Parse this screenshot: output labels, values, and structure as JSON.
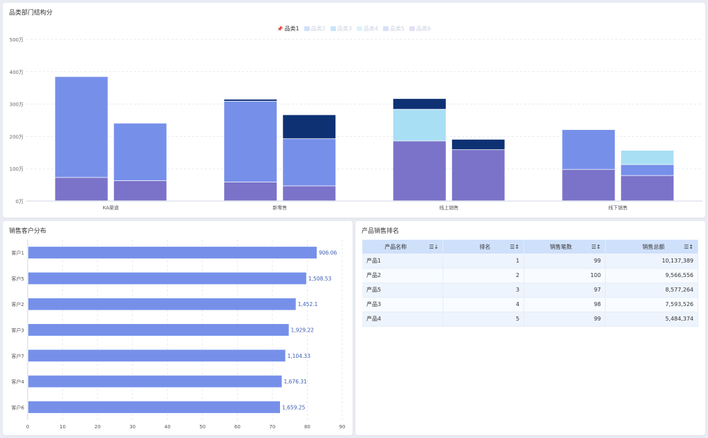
{
  "top_panel": {
    "title": "品类部门结构分"
  },
  "left_panel": {
    "title": "销售客户分布"
  },
  "right_panel": {
    "title": "产品销售排名"
  },
  "chart_data": [
    {
      "type": "bar",
      "stacked": true,
      "title": "品类部门结构分",
      "categories": [
        "KA渠道",
        "新零售",
        "线上销售",
        "线下销售"
      ],
      "y_unit": "万",
      "ylim": [
        0,
        500
      ],
      "yticks": [
        "0万",
        "100万",
        "200万",
        "300万",
        "400万",
        "500万"
      ],
      "legend": [
        {
          "name": "品类1",
          "active": true,
          "color": "#0e3174"
        },
        {
          "name": "品类2",
          "active": false,
          "color": "#cfe0fb"
        },
        {
          "name": "品类3",
          "active": false,
          "color": "#c7e6fa"
        },
        {
          "name": "品类4",
          "active": false,
          "color": "#dff2fb"
        },
        {
          "name": "品类5",
          "active": false,
          "color": "#d9e1f6"
        },
        {
          "name": "品类6",
          "active": false,
          "color": "#e3e0f4"
        }
      ],
      "bars": [
        [
          {
            "segments": [
              {
                "value": 72,
                "color": "#7b73c9"
              },
              {
                "value": 312,
                "color": "#7690ea"
              }
            ]
          },
          {
            "segments": [
              {
                "value": 62,
                "color": "#7b73c9"
              },
              {
                "value": 178,
                "color": "#7690ea"
              }
            ]
          }
        ],
        [
          {
            "segments": [
              {
                "value": 58,
                "color": "#7b73c9"
              },
              {
                "value": 250,
                "color": "#7690ea"
              },
              {
                "value": 6,
                "color": "#0e3174"
              }
            ]
          },
          {
            "segments": [
              {
                "value": 46,
                "color": "#7b73c9"
              },
              {
                "value": 146,
                "color": "#7690ea"
              },
              {
                "value": 74,
                "color": "#0e3174"
              }
            ]
          }
        ],
        [
          {
            "segments": [
              {
                "value": 185,
                "color": "#7b73c9"
              },
              {
                "value": 98,
                "color": "#a9dff4"
              },
              {
                "value": 33,
                "color": "#0e3174"
              }
            ]
          },
          {
            "segments": [
              {
                "value": 158,
                "color": "#7b73c9"
              },
              {
                "value": 32,
                "color": "#0e3174"
              }
            ]
          }
        ],
        [
          {
            "segments": [
              {
                "value": 97,
                "color": "#7b73c9"
              },
              {
                "value": 123,
                "color": "#7690ea"
              }
            ]
          },
          {
            "segments": [
              {
                "value": 78,
                "color": "#7b73c9"
              },
              {
                "value": 34,
                "color": "#7690ea"
              },
              {
                "value": 44,
                "color": "#a9dff4"
              }
            ]
          }
        ]
      ]
    },
    {
      "type": "bar",
      "orientation": "horizontal",
      "title": "销售客户分布",
      "categories": [
        "客户1",
        "客户5",
        "客户2",
        "客户3",
        "客户7",
        "客户4",
        "客户6"
      ],
      "values": [
        82.5,
        79.5,
        76.5,
        74.5,
        73.5,
        72.5,
        72
      ],
      "labels": [
        "906.06",
        "1,508.53",
        "1,452.1",
        "1,929.22",
        "1,104.33",
        "1,676.31",
        "1,659.25"
      ],
      "xlim": [
        0,
        90
      ],
      "xticks": [
        "0",
        "10",
        "20",
        "30",
        "40",
        "50",
        "60",
        "70",
        "80",
        "90"
      ],
      "color": "#7690ea"
    }
  ],
  "table": {
    "headers": [
      "产品名称",
      "排名",
      "销售笔数",
      "销售总额"
    ],
    "rows": [
      [
        "产品1",
        "1",
        "99",
        "10,137,389"
      ],
      [
        "产品2",
        "2",
        "100",
        "9,566,556"
      ],
      [
        "产品5",
        "3",
        "97",
        "8,577,264"
      ],
      [
        "产品3",
        "4",
        "98",
        "7,593,526"
      ],
      [
        "产品4",
        "5",
        "99",
        "5,484,374"
      ]
    ]
  }
}
